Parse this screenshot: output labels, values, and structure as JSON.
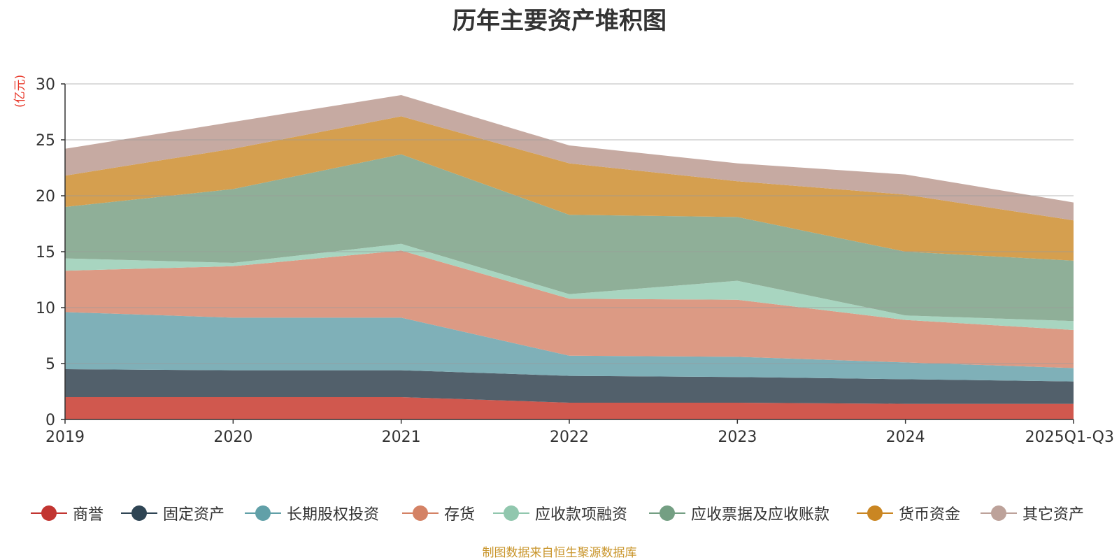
{
  "chart_data": {
    "type": "area",
    "stacked": true,
    "title": "历年主要资产堆积图",
    "ylabel": "(亿元)",
    "xlabel": "",
    "ylim": [
      0,
      30
    ],
    "yticks": [
      0,
      5,
      10,
      15,
      20,
      25,
      30
    ],
    "categories": [
      "2019",
      "2020",
      "2021",
      "2022",
      "2023",
      "2024",
      "2025Q1-Q3"
    ],
    "grid": true,
    "legend_position": "bottom",
    "series": [
      {
        "name": "商誉",
        "color": "#d0584e",
        "values": [
          2.0,
          2.0,
          2.0,
          1.5,
          1.5,
          1.4,
          1.4
        ]
      },
      {
        "name": "固定资产",
        "color": "#52606b",
        "values": [
          2.5,
          2.4,
          2.4,
          2.4,
          2.3,
          2.2,
          2.0
        ]
      },
      {
        "name": "长期股权投资",
        "color": "#7fb0b8",
        "values": [
          5.1,
          4.7,
          4.7,
          1.8,
          1.8,
          1.5,
          1.2
        ]
      },
      {
        "name": "存货",
        "color": "#dc9a84",
        "values": [
          3.7,
          4.6,
          6.0,
          5.1,
          5.1,
          3.8,
          3.4
        ]
      },
      {
        "name": "应收款项融资",
        "color": "#a8d5c0",
        "values": [
          1.1,
          0.3,
          0.6,
          0.4,
          1.7,
          0.4,
          0.8
        ]
      },
      {
        "name": "应收票据及应收账款",
        "color": "#8faf98",
        "values": [
          4.6,
          6.6,
          8.0,
          7.1,
          5.7,
          5.7,
          5.4
        ]
      },
      {
        "name": "货币资金",
        "color": "#d59f4f",
        "values": [
          2.8,
          3.6,
          3.4,
          4.6,
          3.2,
          5.1,
          3.6
        ]
      },
      {
        "name": "其它资产",
        "color": "#c6aaa2",
        "values": [
          2.4,
          2.4,
          1.9,
          1.6,
          1.6,
          1.8,
          1.6
        ]
      }
    ],
    "legend": [
      {
        "name": "商誉",
        "color": "#c23531"
      },
      {
        "name": "固定资产",
        "color": "#2f4554"
      },
      {
        "name": "长期股权投资",
        "color": "#61a0a8"
      },
      {
        "name": "存货",
        "color": "#d48265"
      },
      {
        "name": "应收款项融资",
        "color": "#91c7ae"
      },
      {
        "name": "应收票据及应收账款",
        "color": "#749f83"
      },
      {
        "name": "货币资金",
        "color": "#ca8622"
      },
      {
        "name": "其它资产",
        "color": "#bda29a"
      }
    ]
  },
  "source_note": "制图数据来自恒生聚源数据库"
}
